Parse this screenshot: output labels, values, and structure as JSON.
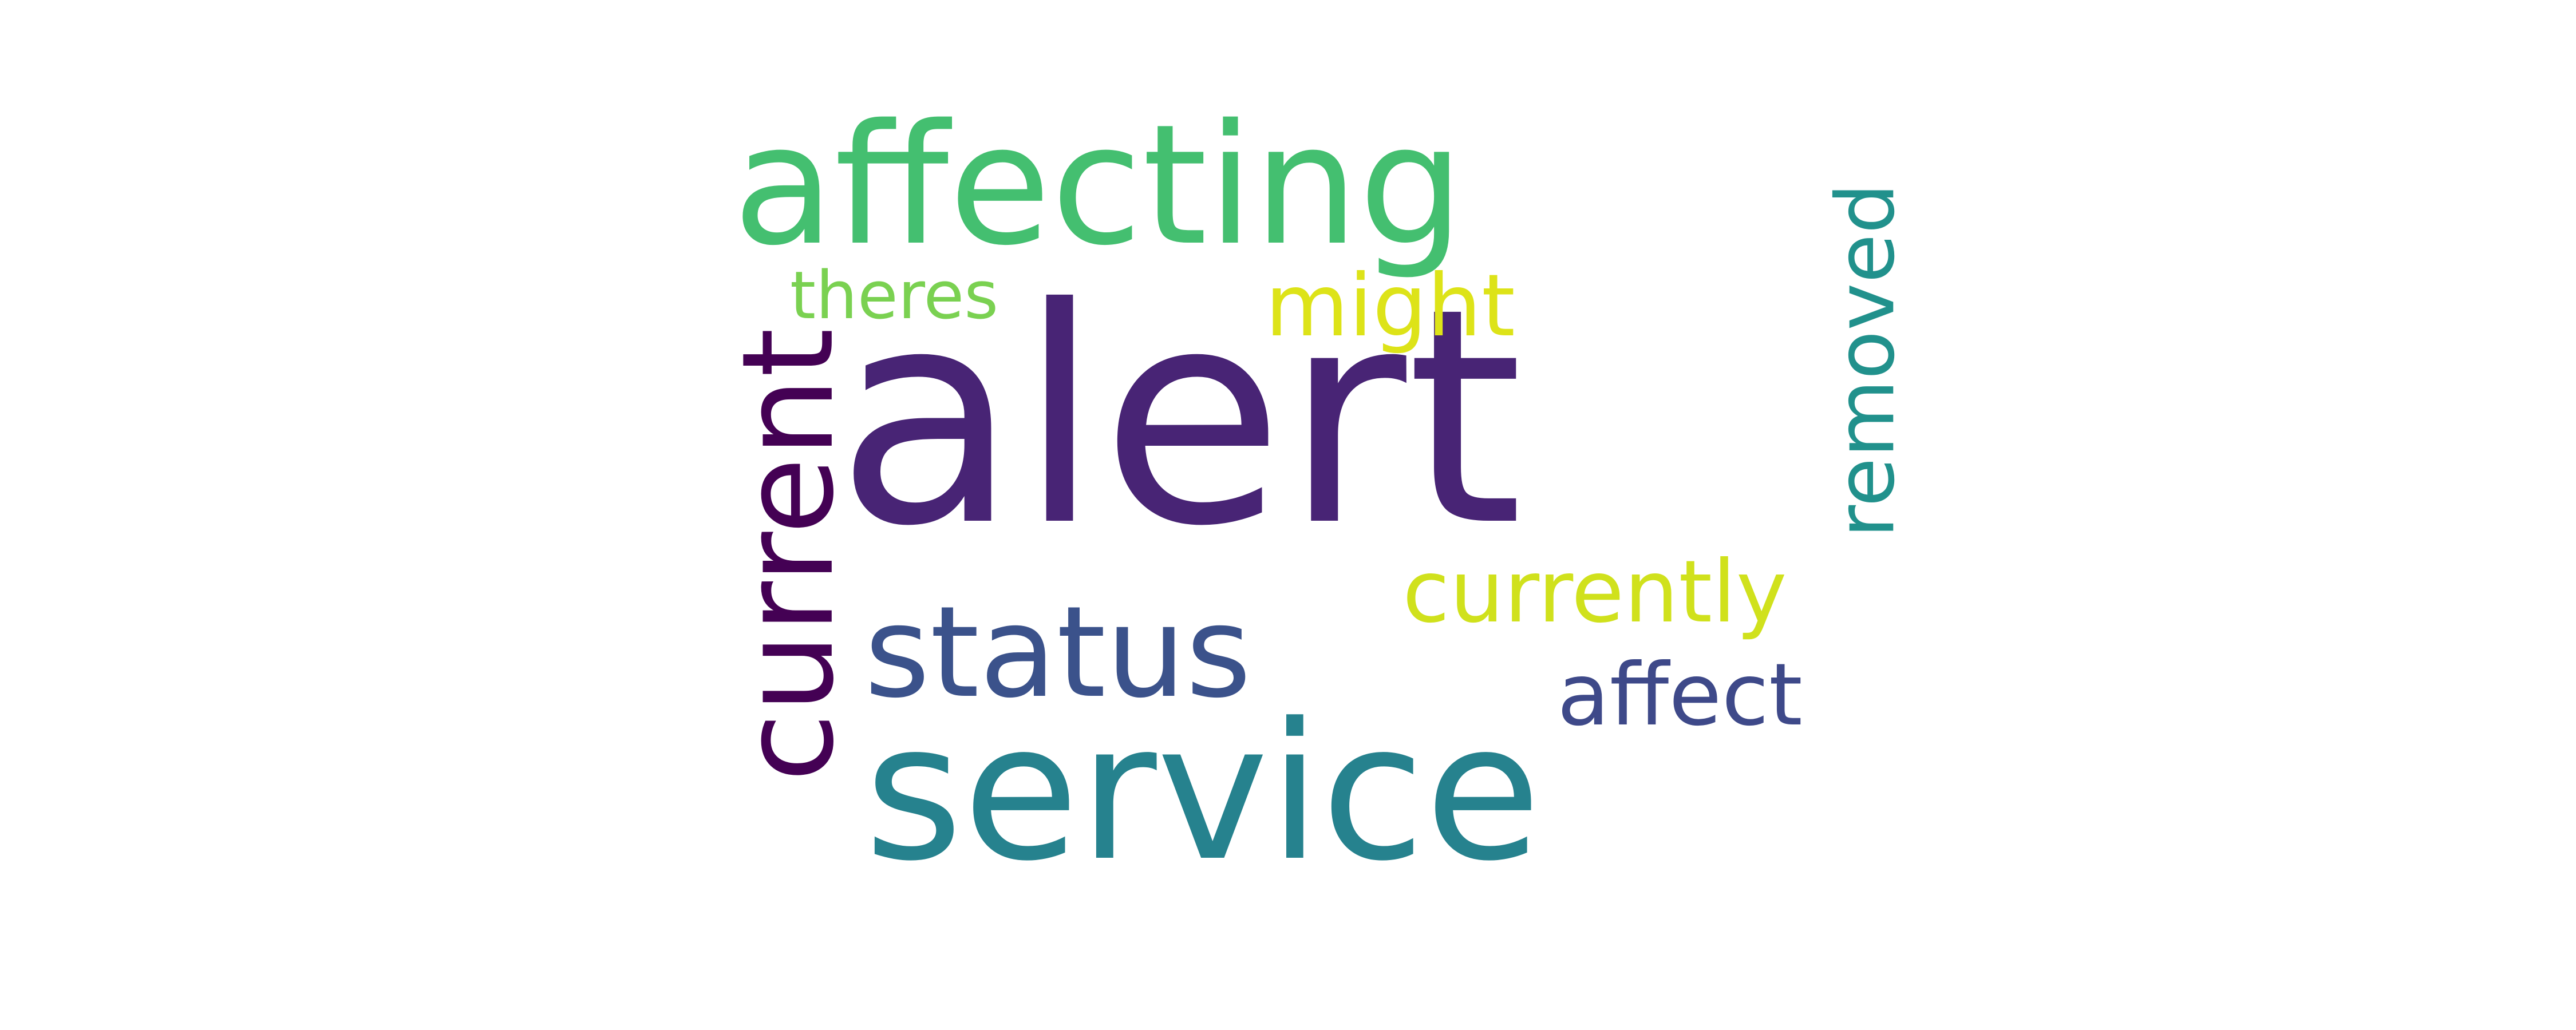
{
  "words": {
    "alert": "alert",
    "affecting": "affecting",
    "service": "service",
    "status": "status",
    "currently": "currently",
    "might": "might",
    "theres": "theres",
    "affect": "affect",
    "current": "current",
    "removed": "removed"
  },
  "colors": {
    "alert": "#482475",
    "affecting": "#44bf70",
    "service": "#26828e",
    "status": "#3b528b",
    "currently": "#d0e11c",
    "might": "#dde318",
    "theres": "#7ad151",
    "affect": "#3e4989",
    "current": "#440154",
    "removed": "#21918c",
    "background": "#ffffff"
  }
}
